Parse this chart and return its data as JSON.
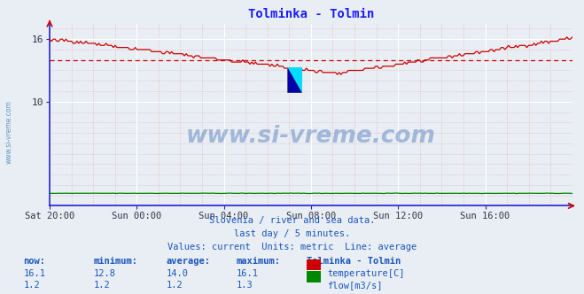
{
  "title": "Tolminka - Tolmin",
  "title_color": "#1a1aff",
  "bg_color": "#e8eef4",
  "plot_bg_color": "#e8eef4",
  "temp_color": "#cc0000",
  "flow_color": "#008800",
  "avg_temp": 14.0,
  "avg_flow": 1.2,
  "watermark_text": "www.si-vreme.com",
  "watermark_color": "#2255aa",
  "watermark_alpha": 0.35,
  "footer_line1": "Slovenia / river and sea data.",
  "footer_line2": "last day / 5 minutes.",
  "footer_line3": "Values: current  Units: metric  Line: average",
  "footer_color": "#1a55bb",
  "table_headers": [
    "now:",
    "minimum:",
    "average:",
    "maximum:",
    "Tolminka - Tolmin"
  ],
  "table_temp": [
    "16.1",
    "12.8",
    "14.0",
    "16.1"
  ],
  "table_flow": [
    "1.2",
    "1.2",
    "1.2",
    "1.3"
  ],
  "n_points": 288,
  "axis_color": "#2222cc",
  "minor_grid_color": "#e8aaaa",
  "major_grid_color": "#ffffff",
  "x_tick_labels": [
    "Sat 20:00",
    "Sun 00:00",
    "Sun 04:00",
    "Sun 08:00",
    "Sun 12:00",
    "Sun 16:00"
  ],
  "y_min": 0,
  "y_max": 17.5,
  "y_ticks": [
    10,
    16
  ],
  "left_label": "www.si-vreme.com",
  "left_label_color": "#4488bb"
}
